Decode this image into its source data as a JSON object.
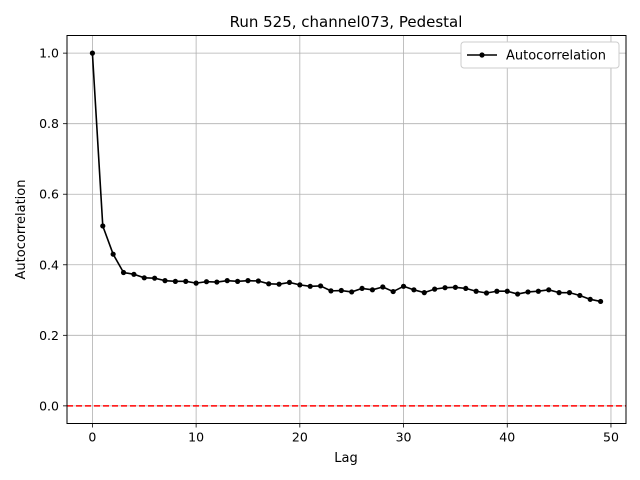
{
  "chart_data": {
    "type": "line",
    "title": "Run 525, channel073, Pedestal",
    "xlabel": "Lag",
    "ylabel": "Autocorrelation",
    "xlim": [
      -2.45,
      51.45
    ],
    "ylim": [
      -0.05,
      1.05
    ],
    "xticks": [
      0,
      10,
      20,
      30,
      40,
      50
    ],
    "yticks": [
      0.0,
      0.2,
      0.4,
      0.6,
      0.8,
      1.0
    ],
    "xtick_labels": [
      "0",
      "10",
      "20",
      "30",
      "40",
      "50"
    ],
    "ytick_labels": [
      "0.0",
      "0.2",
      "0.4",
      "0.6",
      "0.8",
      "1.0"
    ],
    "grid": true,
    "legend_position": "top-right",
    "series": [
      {
        "name": "Autocorrelation",
        "color": "#000000",
        "x": [
          0,
          1,
          2,
          3,
          4,
          5,
          6,
          7,
          8,
          9,
          10,
          11,
          12,
          13,
          14,
          15,
          16,
          17,
          18,
          19,
          20,
          21,
          22,
          23,
          24,
          25,
          26,
          27,
          28,
          29,
          30,
          31,
          32,
          33,
          34,
          35,
          36,
          37,
          38,
          39,
          40,
          41,
          42,
          43,
          44,
          45,
          46,
          47,
          48,
          49
        ],
        "values": [
          1.0,
          0.51,
          0.43,
          0.378,
          0.373,
          0.363,
          0.362,
          0.355,
          0.353,
          0.353,
          0.348,
          0.352,
          0.351,
          0.355,
          0.353,
          0.355,
          0.354,
          0.346,
          0.345,
          0.35,
          0.343,
          0.339,
          0.34,
          0.326,
          0.327,
          0.323,
          0.333,
          0.329,
          0.337,
          0.324,
          0.339,
          0.329,
          0.321,
          0.331,
          0.335,
          0.336,
          0.333,
          0.325,
          0.32,
          0.325,
          0.325,
          0.317,
          0.323,
          0.325,
          0.329,
          0.321,
          0.321,
          0.313,
          0.302,
          0.296
        ]
      }
    ],
    "reference_line": {
      "y": 0.0,
      "color": "#ff0000",
      "style": "dashed"
    }
  }
}
